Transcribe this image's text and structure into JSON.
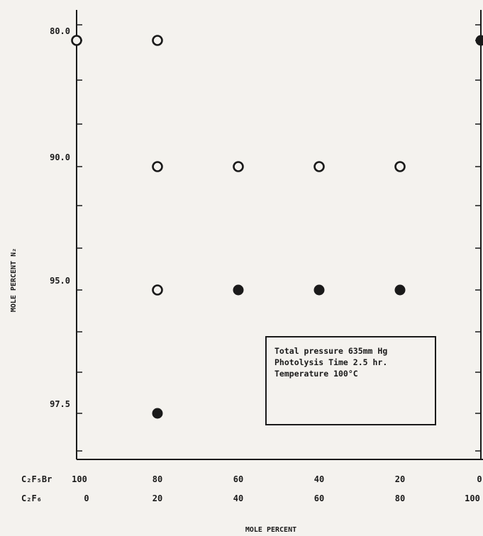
{
  "chart_data": {
    "type": "scatter",
    "ylabel": "MOLE PERCENT N₂",
    "xlabel": "MOLE PERCENT",
    "y_ticks": [
      "80.0",
      "90.0",
      "95.0",
      "97.5"
    ],
    "x_tick_rows": [
      {
        "name": "C₂F₅Br",
        "values": [
          "100",
          "80",
          "60",
          "40",
          "20",
          "0"
        ]
      },
      {
        "name": "C₂F₆",
        "values": [
          "0",
          "20",
          "40",
          "60",
          "80",
          "100"
        ]
      }
    ],
    "series": [
      {
        "marker": "open-circle",
        "points": [
          {
            "x": 100,
            "y": 80.0
          },
          {
            "x": 80,
            "y": 80.0
          },
          {
            "x": 80,
            "y": 90.0
          },
          {
            "x": 60,
            "y": 90.0
          },
          {
            "x": 40,
            "y": 90.0
          },
          {
            "x": 20,
            "y": 90.0
          },
          {
            "x": 80,
            "y": 95.0
          }
        ]
      },
      {
        "marker": "filled-circle",
        "points": [
          {
            "x": 0,
            "y": 80.0
          },
          {
            "x": 60,
            "y": 95.0
          },
          {
            "x": 40,
            "y": 95.0
          },
          {
            "x": 20,
            "y": 95.0
          },
          {
            "x": 80,
            "y": 97.5
          }
        ]
      }
    ],
    "annotation": [
      "Total pressure 635mm Hg",
      "Photolysis Time 2.5 hr.",
      "Temperature 100°C"
    ],
    "colors": {
      "ink": "#1a1a1a",
      "background": "#f4f2ee"
    }
  }
}
